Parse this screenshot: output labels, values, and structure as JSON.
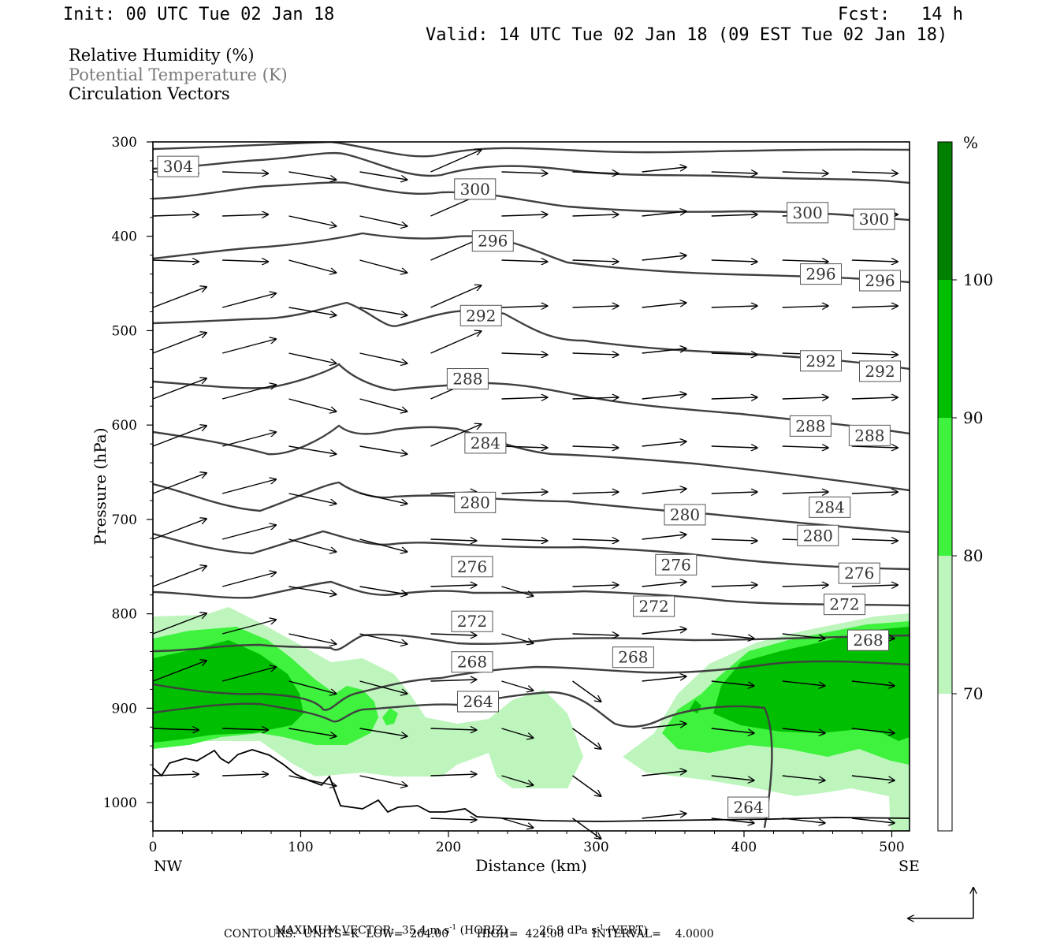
{
  "header": {
    "init": "Init: 00 UTC Tue 02 Jan 18",
    "fcst": "Fcst:   14 h",
    "valid": "Valid: 14 UTC Tue 02 Jan 18 (09 EST Tue 02 Jan 18)"
  },
  "fields": {
    "rh": "Relative Humidity (%)",
    "theta": "Potential Temperature (K)",
    "vectors": "Circulation Vectors"
  },
  "footer": {
    "max_prefix": "MAXIMUM VECTOR:  35.4 m s",
    "max_horiz": "(HORIZ)",
    "max_vert_val": "26.9 dPa s",
    "max_vert": "(VERT)",
    "exp": "-1",
    "contours": "CONTOURS:  UNITS=K  LOW=  264.00        HIGH=  424.00        INTERVAL=    4.0000"
  },
  "colors": {
    "rh70": "#bdf5bd",
    "rh80": "#3ef23e",
    "rh90": "#00bf00",
    "rh100": "#007f00",
    "contour": "#404040"
  },
  "chart_data": {
    "type": "cross-section",
    "xlabel": "Distance (km)",
    "ylabel": "Pressure (hPa)",
    "xlim": [
      0,
      512
    ],
    "ylim": [
      1030,
      300
    ],
    "x_ticks": [
      0,
      100,
      200,
      300,
      400,
      500
    ],
    "y_ticks": [
      300,
      400,
      500,
      600,
      700,
      800,
      900,
      1000
    ],
    "x_end_labels": [
      "NW",
      "SE"
    ],
    "colorbar": {
      "unit": "%",
      "levels": [
        70,
        80,
        90,
        100
      ],
      "colors": [
        "#ffffff",
        "#bdf5bd",
        "#3ef23e",
        "#00bf00",
        "#007f00"
      ]
    },
    "theta_contour_labels": [
      {
        "value": "304",
        "x": 17,
        "p": 326
      },
      {
        "value": "300",
        "x": 218,
        "p": 350
      },
      {
        "value": "300",
        "x": 443,
        "p": 375
      },
      {
        "value": "300",
        "x": 488,
        "p": 382
      },
      {
        "value": "296",
        "x": 230,
        "p": 405
      },
      {
        "value": "296",
        "x": 452,
        "p": 440
      },
      {
        "value": "296",
        "x": 492,
        "p": 447
      },
      {
        "value": "292",
        "x": 222,
        "p": 484
      },
      {
        "value": "292",
        "x": 452,
        "p": 532
      },
      {
        "value": "292",
        "x": 492,
        "p": 543
      },
      {
        "value": "288",
        "x": 213,
        "p": 551
      },
      {
        "value": "288",
        "x": 445,
        "p": 601
      },
      {
        "value": "288",
        "x": 485,
        "p": 611
      },
      {
        "value": "284",
        "x": 225,
        "p": 619
      },
      {
        "value": "284",
        "x": 458,
        "p": 687
      },
      {
        "value": "280",
        "x": 218,
        "p": 682
      },
      {
        "value": "280",
        "x": 360,
        "p": 695
      },
      {
        "value": "280",
        "x": 450,
        "p": 717
      },
      {
        "value": "276",
        "x": 216,
        "p": 750
      },
      {
        "value": "276",
        "x": 354,
        "p": 748
      },
      {
        "value": "276",
        "x": 478,
        "p": 757
      },
      {
        "value": "272",
        "x": 216,
        "p": 808
      },
      {
        "value": "272",
        "x": 339,
        "p": 792
      },
      {
        "value": "272",
        "x": 468,
        "p": 790
      },
      {
        "value": "268",
        "x": 216,
        "p": 851
      },
      {
        "value": "268",
        "x": 325,
        "p": 846
      },
      {
        "value": "268",
        "x": 484,
        "p": 828
      },
      {
        "value": "264",
        "x": 220,
        "p": 893
      },
      {
        "value": "264",
        "x": 403,
        "p": 1005
      }
    ],
    "max_vector": {
      "horiz": 35.4,
      "horiz_unit": "m s-1",
      "vert": 26.9,
      "vert_unit": "dPa s-1"
    },
    "contour_info": {
      "units": "K",
      "low": 264.0,
      "high": 424.0,
      "interval": 4.0
    }
  }
}
